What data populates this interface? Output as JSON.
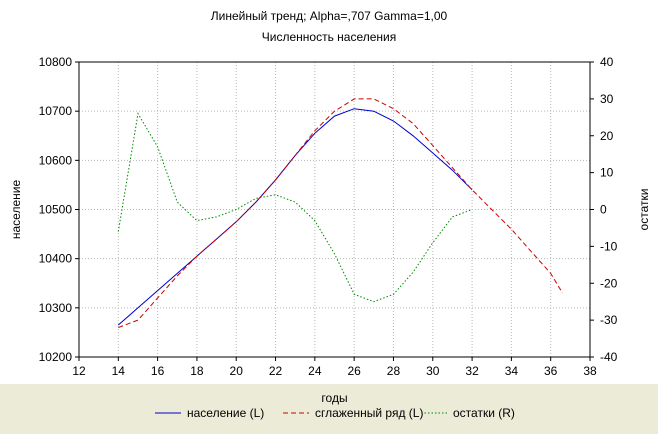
{
  "chart_data": {
    "type": "line",
    "title": "Линейный тренд; Alpha=,707 Gamma=1,00",
    "subtitle": "Численность населения",
    "xlabel": "годы",
    "ylabel_left": "население",
    "ylabel_right": "остатки",
    "xlim": [
      12,
      38
    ],
    "ylim_left": [
      10200,
      10800
    ],
    "ylim_right": [
      -40,
      40
    ],
    "x_ticks": [
      "12",
      "14",
      "16",
      "18",
      "20",
      "22",
      "24",
      "26",
      "28",
      "30",
      "32",
      "34",
      "36",
      "38"
    ],
    "y_ticks_left": [
      "10800",
      "10700",
      "10600",
      "10500",
      "10400",
      "10300",
      "10200"
    ],
    "y_ticks_right": [
      "40",
      "30",
      "20",
      "10",
      "0",
      "-10",
      "-20",
      "-30",
      "-40"
    ],
    "grid": true,
    "legend_position": "bottom",
    "series": [
      {
        "name": "население (L)",
        "axis": "left",
        "color": "#0000cc",
        "style": "solid",
        "x": [
          14,
          15,
          16,
          17,
          18,
          19,
          20,
          21,
          22,
          23,
          24,
          25,
          26,
          27,
          28,
          29,
          30,
          31,
          32
        ],
        "y": [
          10265,
          10300,
          10335,
          10370,
          10405,
          10440,
          10475,
          10515,
          10560,
          10610,
          10655,
          10690,
          10705,
          10700,
          10680,
          10650,
          10615,
          10580,
          10540
        ]
      },
      {
        "name": "сглаженный ряд (L)",
        "axis": "left",
        "color": "#cc0000",
        "style": "dashed",
        "x": [
          14,
          15,
          16,
          17,
          18,
          19,
          20,
          21,
          22,
          23,
          24,
          25,
          26,
          27,
          28,
          29,
          30,
          31,
          32,
          33,
          34,
          35,
          36,
          36.6
        ],
        "y": [
          10260,
          10275,
          10320,
          10365,
          10405,
          10440,
          10475,
          10515,
          10560,
          10610,
          10660,
          10700,
          10725,
          10725,
          10705,
          10675,
          10630,
          10585,
          10540,
          10500,
          10460,
          10415,
          10370,
          10330
        ]
      },
      {
        "name": "остатки (R)",
        "axis": "right",
        "color": "#008800",
        "style": "dotted",
        "x": [
          14,
          15,
          16,
          17,
          18,
          19,
          20,
          21,
          22,
          23,
          24,
          25,
          26,
          27,
          28,
          29,
          30,
          31,
          32
        ],
        "y": [
          -6,
          26,
          17,
          2,
          -3,
          -2,
          0,
          3,
          4,
          2,
          -3,
          -12,
          -23,
          -25,
          -23,
          -17,
          -9,
          -2,
          0
        ]
      }
    ]
  }
}
